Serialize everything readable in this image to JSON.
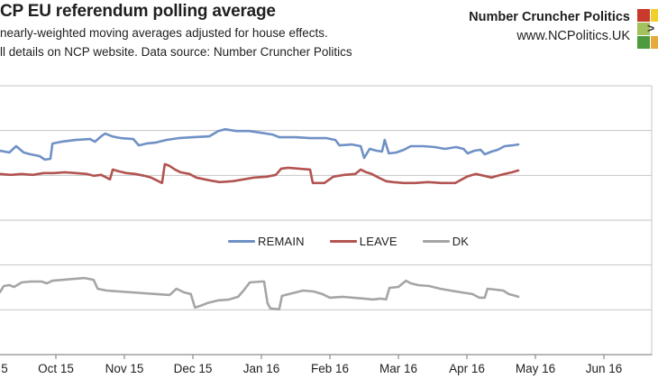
{
  "header": {
    "title": "CP EU referendum polling average",
    "subtitle1": "nearly-weighted moving averages adjusted for house effects.",
    "subtitle2": "ll details on NCP website. Data source: Number Cruncher Politics",
    "brand_name": "Number Cruncher Politics",
    "brand_url": "www.NCPolitics.UK",
    "logo": {
      "arrow_glyph": ">",
      "cells": [
        {
          "name": "red",
          "color": "#c93a2c"
        },
        {
          "name": "yellow",
          "color": "#f2cf2a"
        },
        {
          "name": "light-green",
          "color": "#a3c25d"
        },
        {
          "name": "arrow",
          "color": "#ffffff"
        },
        {
          "name": "dark-green",
          "color": "#4e9a3f"
        },
        {
          "name": "amber",
          "color": "#e7a83c"
        }
      ]
    }
  },
  "chart_data": {
    "type": "line",
    "title": "NCP EU referendum polling average (left-cropped)",
    "x_unit": "months since Sep 2015 tick",
    "x_tick_labels": [
      {
        "t": "5",
        "m": 0.25
      },
      {
        "t": "Oct 15",
        "m": 1
      },
      {
        "t": "Nov 15",
        "m": 2
      },
      {
        "t": "Dec 15",
        "m": 3
      },
      {
        "t": "Jan 16",
        "m": 4
      },
      {
        "t": "Feb 16",
        "m": 5
      },
      {
        "t": "Mar 16",
        "m": 6
      },
      {
        "t": "Apr 16",
        "m": 7
      },
      {
        "t": "May 16",
        "m": 8
      },
      {
        "t": "Jun 16",
        "m": 9
      }
    ],
    "y_axis": {
      "min": 0,
      "max": 60,
      "grid_step": 10,
      "labels_visible": false,
      "unit": "%"
    },
    "grid": true,
    "legend_position": "center-inside",
    "colors": {
      "grid": "#c6c6c6",
      "axis": "#8c8c8c",
      "text": "#1f1f1f"
    },
    "series": [
      {
        "name": "REMAIN",
        "color": "#6f91c6",
        "points": [
          [
            0.18,
            45.5
          ],
          [
            0.32,
            45.1
          ],
          [
            0.42,
            46.5
          ],
          [
            0.53,
            45.1
          ],
          [
            0.63,
            44.7
          ],
          [
            0.76,
            44.3
          ],
          [
            0.84,
            43.5
          ],
          [
            0.92,
            43.7
          ],
          [
            0.95,
            47.1
          ],
          [
            1.08,
            47.5
          ],
          [
            1.29,
            47.9
          ],
          [
            1.5,
            48.1
          ],
          [
            1.57,
            47.5
          ],
          [
            1.66,
            48.7
          ],
          [
            1.72,
            49.3
          ],
          [
            1.82,
            48.7
          ],
          [
            1.95,
            48.3
          ],
          [
            2.13,
            48.1
          ],
          [
            2.21,
            46.7
          ],
          [
            2.32,
            47.1
          ],
          [
            2.45,
            47.3
          ],
          [
            2.61,
            47.9
          ],
          [
            2.79,
            48.3
          ],
          [
            3.0,
            48.5
          ],
          [
            3.24,
            48.7
          ],
          [
            3.37,
            49.9
          ],
          [
            3.47,
            50.3
          ],
          [
            3.63,
            49.9
          ],
          [
            3.82,
            49.9
          ],
          [
            4.0,
            49.5
          ],
          [
            4.16,
            49.1
          ],
          [
            4.26,
            48.5
          ],
          [
            4.5,
            48.5
          ],
          [
            4.71,
            48.3
          ],
          [
            4.95,
            48.3
          ],
          [
            5.08,
            47.9
          ],
          [
            5.14,
            46.7
          ],
          [
            5.32,
            46.9
          ],
          [
            5.45,
            46.5
          ],
          [
            5.5,
            43.9
          ],
          [
            5.58,
            45.9
          ],
          [
            5.68,
            45.5
          ],
          [
            5.76,
            45.3
          ],
          [
            5.8,
            47.9
          ],
          [
            5.86,
            44.9
          ],
          [
            5.97,
            45.1
          ],
          [
            6.08,
            45.7
          ],
          [
            6.18,
            46.5
          ],
          [
            6.37,
            46.5
          ],
          [
            6.53,
            46.3
          ],
          [
            6.68,
            45.9
          ],
          [
            6.84,
            46.3
          ],
          [
            6.95,
            45.9
          ],
          [
            7.01,
            44.9
          ],
          [
            7.11,
            45.5
          ],
          [
            7.2,
            45.7
          ],
          [
            7.26,
            44.7
          ],
          [
            7.36,
            45.3
          ],
          [
            7.45,
            45.7
          ],
          [
            7.55,
            46.5
          ],
          [
            7.66,
            46.7
          ],
          [
            7.75,
            46.9
          ]
        ]
      },
      {
        "name": "LEAVE",
        "color": "#b25450",
        "points": [
          [
            0.18,
            40.3
          ],
          [
            0.34,
            40.1
          ],
          [
            0.5,
            40.3
          ],
          [
            0.66,
            40.1
          ],
          [
            0.82,
            40.5
          ],
          [
            0.97,
            40.5
          ],
          [
            1.13,
            40.7
          ],
          [
            1.29,
            40.5
          ],
          [
            1.45,
            40.3
          ],
          [
            1.55,
            39.9
          ],
          [
            1.66,
            40.1
          ],
          [
            1.74,
            39.5
          ],
          [
            1.79,
            39.1
          ],
          [
            1.83,
            41.3
          ],
          [
            1.92,
            40.9
          ],
          [
            2.03,
            40.5
          ],
          [
            2.16,
            40.3
          ],
          [
            2.29,
            39.9
          ],
          [
            2.39,
            39.5
          ],
          [
            2.47,
            38.9
          ],
          [
            2.55,
            38.3
          ],
          [
            2.59,
            42.5
          ],
          [
            2.66,
            42.1
          ],
          [
            2.74,
            41.3
          ],
          [
            2.82,
            40.7
          ],
          [
            2.95,
            40.3
          ],
          [
            3.05,
            39.5
          ],
          [
            3.24,
            38.9
          ],
          [
            3.39,
            38.5
          ],
          [
            3.58,
            38.7
          ],
          [
            3.74,
            39.1
          ],
          [
            3.89,
            39.5
          ],
          [
            4.08,
            39.7
          ],
          [
            4.21,
            40.1
          ],
          [
            4.29,
            41.5
          ],
          [
            4.39,
            41.7
          ],
          [
            4.55,
            41.5
          ],
          [
            4.71,
            41.3
          ],
          [
            4.75,
            38.3
          ],
          [
            4.92,
            38.3
          ],
          [
            5.05,
            39.7
          ],
          [
            5.21,
            40.1
          ],
          [
            5.37,
            40.3
          ],
          [
            5.45,
            41.3
          ],
          [
            5.53,
            40.7
          ],
          [
            5.61,
            40.3
          ],
          [
            5.71,
            39.5
          ],
          [
            5.82,
            38.7
          ],
          [
            5.92,
            38.5
          ],
          [
            6.08,
            38.3
          ],
          [
            6.24,
            38.3
          ],
          [
            6.43,
            38.5
          ],
          [
            6.63,
            38.3
          ],
          [
            6.83,
            38.3
          ],
          [
            7.0,
            39.7
          ],
          [
            7.13,
            40.3
          ],
          [
            7.25,
            39.9
          ],
          [
            7.36,
            39.5
          ],
          [
            7.45,
            39.9
          ],
          [
            7.55,
            40.3
          ],
          [
            7.66,
            40.7
          ],
          [
            7.75,
            41.1
          ]
        ]
      },
      {
        "name": "DK",
        "color": "#a5a5a5",
        "points": [
          [
            0.18,
            13.9
          ],
          [
            0.24,
            15.3
          ],
          [
            0.32,
            15.5
          ],
          [
            0.39,
            15.1
          ],
          [
            0.5,
            16.1
          ],
          [
            0.63,
            16.3
          ],
          [
            0.79,
            16.3
          ],
          [
            0.87,
            15.9
          ],
          [
            0.95,
            16.5
          ],
          [
            1.11,
            16.7
          ],
          [
            1.26,
            16.9
          ],
          [
            1.42,
            17.1
          ],
          [
            1.55,
            16.7
          ],
          [
            1.61,
            14.7
          ],
          [
            1.74,
            14.3
          ],
          [
            1.92,
            14.1
          ],
          [
            2.11,
            13.9
          ],
          [
            2.29,
            13.7
          ],
          [
            2.47,
            13.5
          ],
          [
            2.66,
            13.3
          ],
          [
            2.76,
            14.7
          ],
          [
            2.87,
            13.9
          ],
          [
            2.97,
            13.5
          ],
          [
            3.03,
            10.5
          ],
          [
            3.11,
            10.9
          ],
          [
            3.21,
            11.5
          ],
          [
            3.37,
            12.1
          ],
          [
            3.53,
            12.3
          ],
          [
            3.66,
            12.9
          ],
          [
            3.74,
            14.3
          ],
          [
            3.83,
            16.1
          ],
          [
            4.0,
            16.3
          ],
          [
            4.04,
            16.3
          ],
          [
            4.09,
            11.5
          ],
          [
            4.13,
            10.3
          ],
          [
            4.26,
            10.1
          ],
          [
            4.3,
            13.1
          ],
          [
            4.45,
            13.7
          ],
          [
            4.61,
            14.3
          ],
          [
            4.76,
            14.1
          ],
          [
            4.89,
            13.5
          ],
          [
            5.0,
            12.7
          ],
          [
            5.18,
            12.9
          ],
          [
            5.34,
            12.7
          ],
          [
            5.5,
            12.5
          ],
          [
            5.63,
            12.3
          ],
          [
            5.74,
            12.5
          ],
          [
            5.82,
            12.3
          ],
          [
            5.87,
            14.9
          ],
          [
            6.0,
            15.1
          ],
          [
            6.11,
            16.5
          ],
          [
            6.18,
            15.9
          ],
          [
            6.29,
            15.5
          ],
          [
            6.45,
            15.3
          ],
          [
            6.61,
            14.7
          ],
          [
            6.76,
            14.3
          ],
          [
            6.92,
            13.9
          ],
          [
            7.08,
            13.5
          ],
          [
            7.18,
            12.7
          ],
          [
            7.26,
            12.7
          ],
          [
            7.3,
            14.7
          ],
          [
            7.42,
            14.5
          ],
          [
            7.53,
            14.3
          ],
          [
            7.61,
            13.5
          ],
          [
            7.71,
            13.1
          ],
          [
            7.75,
            12.9
          ]
        ]
      }
    ]
  }
}
